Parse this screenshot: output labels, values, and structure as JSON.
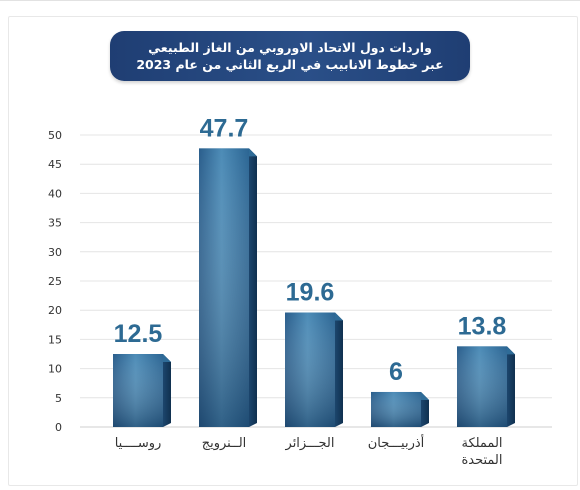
{
  "title": {
    "line1": "واردات دول الاتحاد الاوروبي من الغاز الطبيعي",
    "line2": "عبر خطوط الانابيب في الربع الثاني من عام 2023"
  },
  "chart_data": {
    "type": "bar",
    "categories": [
      [
        "روســــيا"
      ],
      [
        "الــنرويج"
      ],
      [
        "الجـــزائر"
      ],
      [
        "أذربيـــجان"
      ],
      [
        "المملكة",
        "المتحدة"
      ]
    ],
    "values": [
      12.5,
      47.7,
      19.6,
      6,
      13.8
    ],
    "value_labels": [
      "12.5",
      "47.7",
      "19.6",
      "6",
      "13.8"
    ],
    "yticks": [
      0,
      5,
      10,
      15,
      20,
      25,
      30,
      35,
      40,
      45,
      50
    ],
    "ylim": [
      0,
      50
    ],
    "grid": true,
    "colors": {
      "bar_light": "#4f8fb9",
      "bar_dark": "#1d4d78",
      "bar_side": "#17385c",
      "bar_top": "#6aa3c8",
      "value_text": "#2d6a93",
      "title_bg": "#24467e"
    }
  }
}
